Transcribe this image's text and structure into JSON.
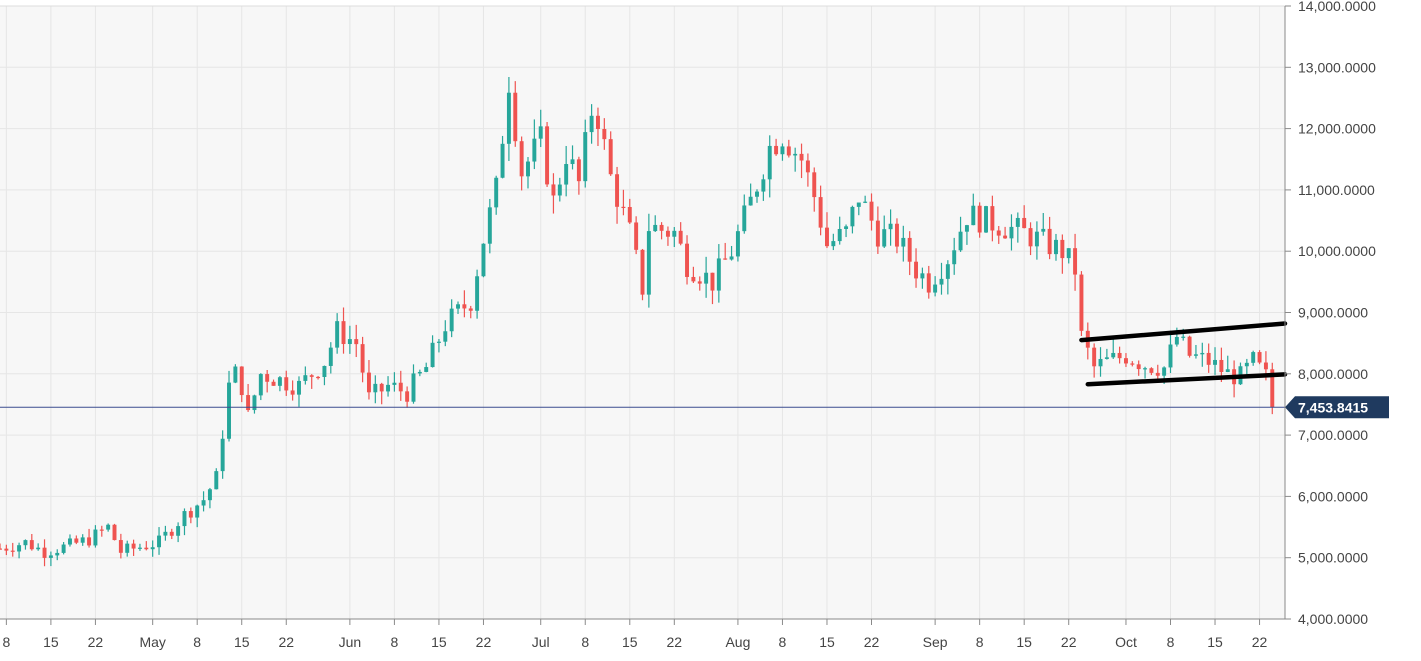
{
  "chart_data": {
    "type": "candlestick",
    "title": "",
    "xlabel": "",
    "ylabel": "",
    "ylim": [
      4000,
      14000
    ],
    "y_ticks": [
      "14,000.0000",
      "13,000.0000",
      "12,000.0000",
      "11,000.0000",
      "10,000.0000",
      "9,000.0000",
      "8,000.0000",
      "7,000.0000",
      "6,000.0000",
      "5,000.0000",
      "4,000.0000"
    ],
    "y_tick_values": [
      14000,
      13000,
      12000,
      11000,
      10000,
      9000,
      8000,
      7000,
      6000,
      5000,
      4000
    ],
    "x_ticks": [
      {
        "label": "8",
        "date": "2019-04-08"
      },
      {
        "label": "15",
        "date": "2019-04-15"
      },
      {
        "label": "22",
        "date": "2019-04-22"
      },
      {
        "label": "May",
        "date": "2019-05-01"
      },
      {
        "label": "8",
        "date": "2019-05-08"
      },
      {
        "label": "15",
        "date": "2019-05-15"
      },
      {
        "label": "22",
        "date": "2019-05-22"
      },
      {
        "label": "Jun",
        "date": "2019-06-01"
      },
      {
        "label": "8",
        "date": "2019-06-08"
      },
      {
        "label": "15",
        "date": "2019-06-15"
      },
      {
        "label": "22",
        "date": "2019-06-22"
      },
      {
        "label": "Jul",
        "date": "2019-07-01"
      },
      {
        "label": "8",
        "date": "2019-07-08"
      },
      {
        "label": "15",
        "date": "2019-07-15"
      },
      {
        "label": "22",
        "date": "2019-07-22"
      },
      {
        "label": "Aug",
        "date": "2019-08-01"
      },
      {
        "label": "8",
        "date": "2019-08-08"
      },
      {
        "label": "15",
        "date": "2019-08-15"
      },
      {
        "label": "22",
        "date": "2019-08-22"
      },
      {
        "label": "Sep",
        "date": "2019-09-01"
      },
      {
        "label": "8",
        "date": "2019-09-08"
      },
      {
        "label": "15",
        "date": "2019-09-15"
      },
      {
        "label": "22",
        "date": "2019-09-22"
      },
      {
        "label": "Oct",
        "date": "2019-10-01"
      },
      {
        "label": "8",
        "date": "2019-10-08"
      },
      {
        "label": "15",
        "date": "2019-10-15"
      },
      {
        "label": "22",
        "date": "2019-10-22"
      }
    ],
    "x_start": "2019-04-07",
    "x_end": "2019-10-26",
    "grid": true,
    "colors": {
      "up": "#26a69a",
      "down": "#ef5350",
      "grid": "#e6e6e6",
      "background": "#f7f7f7",
      "price_line": "#3b4d8f",
      "price_label_bg": "#1f3a5f",
      "trendline": "#000000"
    },
    "current_price": 7453.8415,
    "current_price_label": "7,453.8415",
    "close_path": [
      [
        "2019-04-07",
        5150
      ],
      [
        "2019-04-11",
        5250
      ],
      [
        "2019-04-14",
        5100
      ],
      [
        "2019-04-18",
        5200
      ],
      [
        "2019-04-21",
        5300
      ],
      [
        "2019-04-24",
        5500
      ],
      [
        "2019-04-26",
        5100
      ],
      [
        "2019-04-28",
        5150
      ],
      [
        "2019-05-02",
        5250
      ],
      [
        "2019-05-06",
        5700
      ],
      [
        "2019-05-09",
        5950
      ],
      [
        "2019-05-11",
        6300
      ],
      [
        "2019-05-13",
        7800
      ],
      [
        "2019-05-14",
        8000
      ],
      [
        "2019-05-15",
        7800
      ],
      [
        "2019-05-16",
        7300
      ],
      [
        "2019-05-18",
        8000
      ],
      [
        "2019-05-21",
        7900
      ],
      [
        "2019-05-24",
        7800
      ],
      [
        "2019-05-28",
        8200
      ],
      [
        "2019-05-30",
        8700
      ],
      [
        "2019-06-02",
        8500
      ],
      [
        "2019-06-04",
        7600
      ],
      [
        "2019-06-07",
        7800
      ],
      [
        "2019-06-10",
        7700
      ],
      [
        "2019-06-13",
        8100
      ],
      [
        "2019-06-16",
        8800
      ],
      [
        "2019-06-20",
        9200
      ],
      [
        "2019-06-22",
        10200
      ],
      [
        "2019-06-24",
        11000
      ],
      [
        "2019-06-26",
        12800
      ],
      [
        "2019-06-28",
        11300
      ],
      [
        "2019-07-01",
        11800
      ],
      [
        "2019-07-03",
        10800
      ],
      [
        "2019-07-05",
        11600
      ],
      [
        "2019-07-07",
        11100
      ],
      [
        "2019-07-09",
        12300
      ],
      [
        "2019-07-10",
        12200
      ],
      [
        "2019-07-12",
        11200
      ],
      [
        "2019-07-15",
        10300
      ],
      [
        "2019-07-17",
        9400
      ],
      [
        "2019-07-18",
        10400
      ],
      [
        "2019-07-22",
        10300
      ],
      [
        "2019-07-24",
        9800
      ],
      [
        "2019-07-28",
        9500
      ],
      [
        "2019-07-31",
        10000
      ],
      [
        "2019-08-03",
        10800
      ],
      [
        "2019-08-06",
        11700
      ],
      [
        "2019-08-08",
        11900
      ],
      [
        "2019-08-11",
        11500
      ],
      [
        "2019-08-13",
        10900
      ],
      [
        "2019-08-15",
        10100
      ],
      [
        "2019-08-18",
        10300
      ],
      [
        "2019-08-20",
        10900
      ],
      [
        "2019-08-23",
        10300
      ],
      [
        "2019-08-26",
        10200
      ],
      [
        "2019-08-29",
        9700
      ],
      [
        "2019-08-31",
        9500
      ],
      [
        "2019-09-03",
        9900
      ],
      [
        "2019-09-06",
        10600
      ],
      [
        "2019-09-09",
        10500
      ],
      [
        "2019-09-12",
        10400
      ],
      [
        "2019-09-15",
        10300
      ],
      [
        "2019-09-18",
        10150
      ],
      [
        "2019-09-21",
        10000
      ],
      [
        "2019-09-23",
        9700
      ],
      [
        "2019-09-24",
        8600
      ],
      [
        "2019-09-26",
        8100
      ],
      [
        "2019-09-28",
        8200
      ],
      [
        "2019-10-01",
        8300
      ],
      [
        "2019-10-04",
        8150
      ],
      [
        "2019-10-07",
        8100
      ],
      [
        "2019-10-09",
        8600
      ],
      [
        "2019-10-11",
        8300
      ],
      [
        "2019-10-14",
        8200
      ],
      [
        "2019-10-17",
        8000
      ],
      [
        "2019-10-19",
        7950
      ],
      [
        "2019-10-21",
        8200
      ],
      [
        "2019-10-23",
        7950
      ],
      [
        "2019-10-24",
        7453.8415
      ]
    ],
    "trendlines": [
      {
        "from": [
          "2019-09-24",
          8550
        ],
        "to": [
          "2019-10-26",
          8820
        ]
      },
      {
        "from": [
          "2019-09-25",
          7830
        ],
        "to": [
          "2019-10-26",
          7990
        ]
      }
    ]
  }
}
